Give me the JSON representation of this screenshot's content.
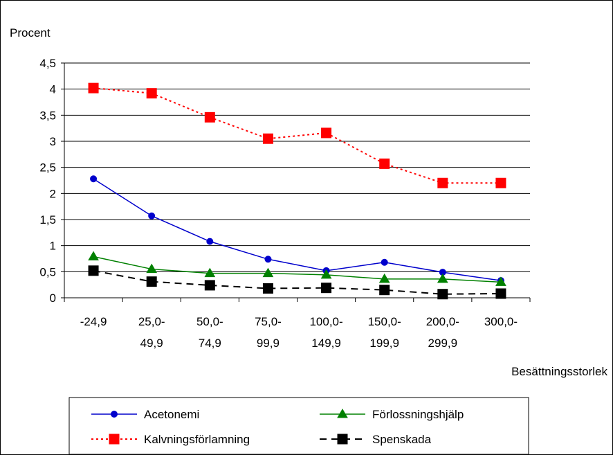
{
  "chart_data": {
    "type": "line",
    "ylabel": "Procent",
    "xlabel": "Besättningsstorlek",
    "ylim": [
      0,
      4.5
    ],
    "yticks": [
      "0",
      "0,5",
      "1",
      "1,5",
      "2",
      "2,5",
      "3",
      "3,5",
      "4",
      "4,5"
    ],
    "categories": [
      [
        "-24,9",
        ""
      ],
      [
        "25,0-",
        "49,9"
      ],
      [
        "50,0-",
        "74,9"
      ],
      [
        "75,0-",
        "99,9"
      ],
      [
        "100,0-",
        "149,9"
      ],
      [
        "150,0-",
        "199,9"
      ],
      [
        "200,0-",
        "299,9"
      ],
      [
        "300,0-",
        ""
      ]
    ],
    "grid": true,
    "legend_position": "bottom",
    "series": [
      {
        "name": "Acetonemi",
        "color": "#0000cc",
        "dash": "solid",
        "marker": "circle",
        "values": [
          2.28,
          1.57,
          1.08,
          0.74,
          0.52,
          0.68,
          0.49,
          0.33
        ]
      },
      {
        "name": "Förlossningshjälp",
        "color": "#008000",
        "dash": "solid",
        "marker": "triangle",
        "values": [
          0.79,
          0.55,
          0.47,
          0.47,
          0.44,
          0.36,
          0.36,
          0.3
        ]
      },
      {
        "name": "Kalvningsförlamning",
        "color": "#ff0000",
        "dash": "dotted",
        "marker": "square",
        "values": [
          4.02,
          3.92,
          3.46,
          3.05,
          3.16,
          2.57,
          2.2,
          2.2
        ]
      },
      {
        "name": "Spenskada",
        "color": "#000000",
        "dash": "dashed",
        "marker": "square",
        "values": [
          0.52,
          0.31,
          0.24,
          0.18,
          0.19,
          0.15,
          0.07,
          0.08
        ]
      }
    ]
  }
}
